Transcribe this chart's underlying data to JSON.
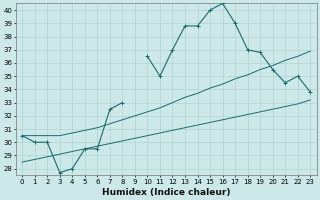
{
  "xlabel": "Humidex (Indice chaleur)",
  "x": [
    0,
    1,
    2,
    3,
    4,
    5,
    6,
    7,
    8,
    9,
    10,
    11,
    12,
    13,
    14,
    15,
    16,
    17,
    18,
    19,
    20,
    21,
    22,
    23
  ],
  "main_line": [
    30.5,
    30.0,
    30.0,
    27.7,
    28.0,
    29.5,
    29.5,
    32.5,
    33.0,
    null,
    36.5,
    35.0,
    37.0,
    38.8,
    38.8,
    40.0,
    40.5,
    39.0,
    37.0,
    36.8,
    35.5,
    34.5,
    35.0,
    33.8
  ],
  "upper_line": [
    30.5,
    30.5,
    30.5,
    30.5,
    30.7,
    30.9,
    31.1,
    31.4,
    31.7,
    32.0,
    32.3,
    32.6,
    33.0,
    33.4,
    33.7,
    34.1,
    34.4,
    34.8,
    35.1,
    35.5,
    35.8,
    36.2,
    36.5,
    36.9
  ],
  "lower_line": [
    28.5,
    28.7,
    28.9,
    29.1,
    29.3,
    29.5,
    29.7,
    29.9,
    30.1,
    30.3,
    30.5,
    30.7,
    30.9,
    31.1,
    31.3,
    31.5,
    31.7,
    31.9,
    32.1,
    32.3,
    32.5,
    32.7,
    32.9,
    33.2
  ],
  "ylim": [
    27.5,
    40.5
  ],
  "yticks": [
    28,
    29,
    30,
    31,
    32,
    33,
    34,
    35,
    36,
    37,
    38,
    39,
    40
  ],
  "xlim": [
    -0.5,
    23.5
  ],
  "xticks": [
    0,
    1,
    2,
    3,
    4,
    5,
    6,
    7,
    8,
    9,
    10,
    11,
    12,
    13,
    14,
    15,
    16,
    17,
    18,
    19,
    20,
    21,
    22,
    23
  ],
  "bg_color": "#cce8e8",
  "line_color": "#1a6b6b",
  "grid_color": "#aacccc",
  "tick_fontsize": 5,
  "xlabel_fontsize": 6.5
}
